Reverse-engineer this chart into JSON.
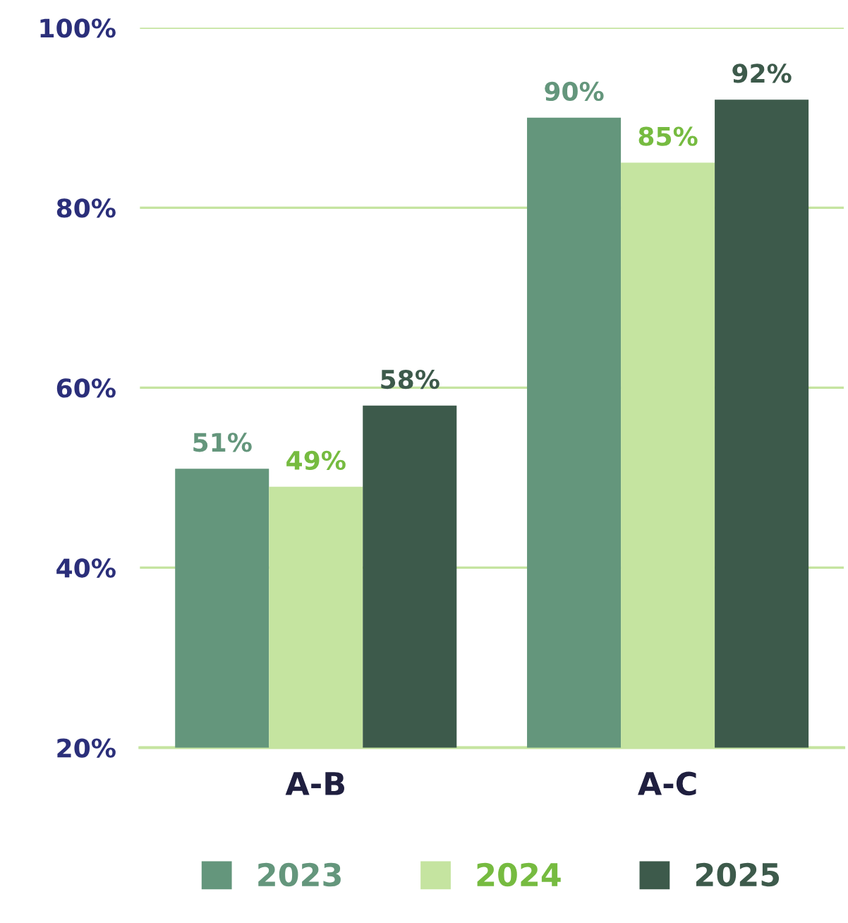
{
  "chart_data": {
    "type": "bar",
    "categories": [
      "A-B",
      "A-C"
    ],
    "series": [
      {
        "name": "2023",
        "color": "#64967c",
        "values": [
          51,
          90
        ],
        "value_labels": [
          "51%",
          "90%"
        ]
      },
      {
        "name": "2024",
        "color": "#c5e4a0",
        "values": [
          49,
          85
        ],
        "value_labels": [
          "49%",
          "85%"
        ]
      },
      {
        "name": "2025",
        "color": "#3d5a4b",
        "values": [
          58,
          92
        ],
        "value_labels": [
          "58%",
          "92%"
        ]
      }
    ],
    "ylim": [
      20,
      100
    ],
    "yticks": [
      {
        "value": 20,
        "label": "20%"
      },
      {
        "value": 40,
        "label": "40%"
      },
      {
        "value": 60,
        "label": "60%"
      },
      {
        "value": 80,
        "label": "80%"
      },
      {
        "value": 100,
        "label": "100%"
      }
    ],
    "grid": "y",
    "legend": "bottom"
  }
}
